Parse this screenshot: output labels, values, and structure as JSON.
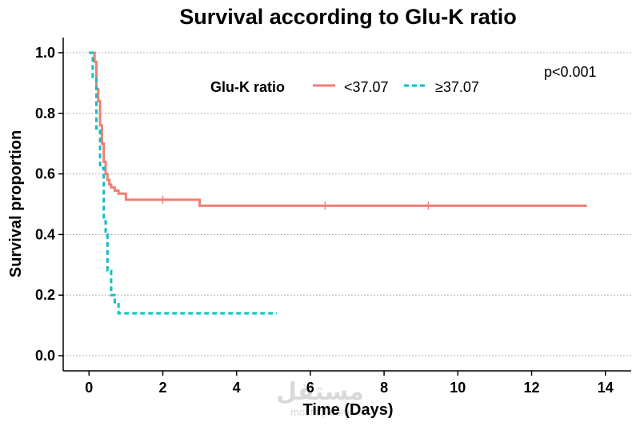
{
  "chart_data": {
    "type": "line",
    "chart_subtype": "kaplan-meier-step",
    "title": "Survival according to Glu-K ratio",
    "xlabel": "Time (Days)",
    "ylabel": "Survival proportion",
    "xlim": [
      -0.7,
      14.7
    ],
    "ylim": [
      -0.05,
      1.05
    ],
    "x_ticks": [
      0,
      2,
      4,
      6,
      8,
      10,
      12,
      14
    ],
    "y_ticks": [
      0.0,
      0.2,
      0.4,
      0.6,
      0.8,
      1.0
    ],
    "y_tick_labels": [
      "0.0",
      "0.2",
      "0.4",
      "0.6",
      "0.8",
      "1.0"
    ],
    "grid": "horizontal-dotted",
    "legend": {
      "title": "Glu-K ratio",
      "placement": "top-center",
      "entries": [
        {
          "label": "<37.07",
          "color": "#f07f73",
          "dash": "solid"
        },
        {
          "label": "≥37.07",
          "color": "#13bfc4",
          "dash": "dashed"
        }
      ]
    },
    "annotation": "p<0.001",
    "series": [
      {
        "name": "<37.07",
        "color": "#f07f73",
        "dash": "solid",
        "x": [
          0,
          0.15,
          0.2,
          0.25,
          0.3,
          0.35,
          0.4,
          0.45,
          0.5,
          0.55,
          0.6,
          0.7,
          0.8,
          1.0,
          3.0,
          13.5
        ],
        "y": [
          1.0,
          0.97,
          0.88,
          0.84,
          0.76,
          0.7,
          0.64,
          0.6,
          0.58,
          0.565,
          0.555,
          0.545,
          0.535,
          0.515,
          0.495,
          0.495
        ],
        "censor_x": [
          2.0,
          6.4,
          9.2
        ]
      },
      {
        "name": "≥37.07",
        "color": "#13bfc4",
        "dash": "dashed",
        "x": [
          0,
          0.1,
          0.2,
          0.3,
          0.4,
          0.45,
          0.5,
          0.6,
          0.7,
          0.8,
          5.1
        ],
        "y": [
          1.0,
          0.92,
          0.75,
          0.62,
          0.45,
          0.4,
          0.28,
          0.2,
          0.17,
          0.14,
          0.14
        ]
      }
    ]
  },
  "watermark": {
    "text": "مستقل",
    "sub": "mostaql.com"
  }
}
